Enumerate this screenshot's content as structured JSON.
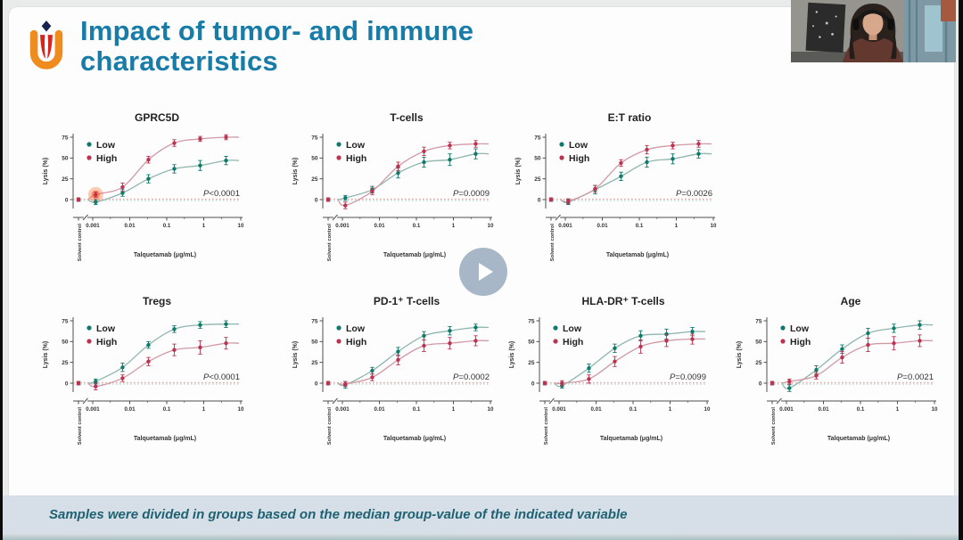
{
  "header": {
    "title_line1": "Impact of tumor- and immune",
    "title_line2": "characteristics",
    "logo": "umc-utrecht-tulip-logo"
  },
  "footer": {
    "caption": "Samples were divided in groups based on the median group-value of the indicated variable"
  },
  "player": {
    "play_icon": "play-triangle"
  },
  "colors": {
    "title": "#187ca8",
    "low": "#0e7a6c",
    "high": "#bc3351",
    "caption_bg": "#d6dfe8",
    "caption_text": "#1f6271",
    "highlight": "#ff5a25"
  },
  "chart_data": [
    {
      "type": "line",
      "title": "GPRC5D",
      "xlabel": "Talquetamab (μg/mL)",
      "ylabel": "Lysis (%)",
      "x_scale": "log",
      "x": [
        0.0012,
        0.0064,
        0.032,
        0.16,
        0.8,
        4
      ],
      "x_tick_labels": [
        "0.001",
        "0.01",
        "0.1",
        "1",
        "10"
      ],
      "y_ticks": [
        0,
        25,
        50,
        75
      ],
      "ylim": [
        -12,
        80
      ],
      "solvent_control_label": "Solvent control",
      "p_label": "P<0.0001",
      "legend_position": "top-left",
      "grid": false,
      "series": [
        {
          "name": "Low",
          "color": "#0e7a6c",
          "curve_color": "#8fb6ae",
          "solvent": 0,
          "values": [
            -3,
            8,
            25,
            37,
            41,
            47
          ],
          "err": [
            3,
            4,
            5,
            5,
            6,
            5
          ]
        },
        {
          "name": "High",
          "color": "#bc3351",
          "curve_color": "#d09aa6",
          "solvent": 0,
          "values": [
            6,
            15,
            48,
            68,
            73,
            75
          ],
          "err": [
            3,
            5,
            4,
            4,
            3,
            3
          ]
        }
      ],
      "highlight": {
        "series": 1,
        "point": 0
      }
    },
    {
      "type": "line",
      "title": "T-cells",
      "xlabel": "Talquetamab (μg/mL)",
      "ylabel": "Lysis (%)",
      "x_scale": "log",
      "x": [
        0.0012,
        0.0064,
        0.032,
        0.16,
        0.8,
        4
      ],
      "x_tick_labels": [
        "0.001",
        "0.01",
        "0.1",
        "1",
        "10"
      ],
      "y_ticks": [
        0,
        25,
        50,
        75
      ],
      "ylim": [
        -12,
        80
      ],
      "solvent_control_label": "Solvent control",
      "p_label": "P=0.0009",
      "legend_position": "top-left",
      "grid": false,
      "series": [
        {
          "name": "Low",
          "color": "#0e7a6c",
          "curve_color": "#8fb6ae",
          "solvent": 0,
          "values": [
            2,
            12,
            32,
            45,
            48,
            55
          ],
          "err": [
            3,
            4,
            6,
            6,
            7,
            6
          ]
        },
        {
          "name": "High",
          "color": "#bc3351",
          "curve_color": "#d09aa6",
          "solvent": 0,
          "values": [
            -7,
            10,
            40,
            58,
            65,
            67
          ],
          "err": [
            4,
            4,
            5,
            5,
            4,
            4
          ]
        }
      ]
    },
    {
      "type": "line",
      "title": "E:T ratio",
      "xlabel": "Talquetamab (μg/mL)",
      "ylabel": "Lysis (%)",
      "x_scale": "log",
      "x": [
        0.0012,
        0.0064,
        0.032,
        0.16,
        0.8,
        4
      ],
      "x_tick_labels": [
        "0.001",
        "0.01",
        "0.1",
        "1",
        "10"
      ],
      "y_ticks": [
        0,
        25,
        50,
        75
      ],
      "ylim": [
        -12,
        80
      ],
      "solvent_control_label": "Solvent control",
      "p_label": "P=0.0026",
      "legend_position": "top-left",
      "grid": false,
      "series": [
        {
          "name": "Low",
          "color": "#0e7a6c",
          "curve_color": "#8fb6ae",
          "solvent": 0,
          "values": [
            -3,
            12,
            28,
            45,
            49,
            55
          ],
          "err": [
            3,
            5,
            5,
            6,
            6,
            5
          ]
        },
        {
          "name": "High",
          "color": "#bc3351",
          "curve_color": "#d09aa6",
          "solvent": 0,
          "values": [
            -2,
            13,
            44,
            60,
            65,
            67
          ],
          "err": [
            3,
            4,
            4,
            5,
            4,
            4
          ]
        }
      ]
    },
    {
      "type": "line",
      "title": "Tregs",
      "xlabel": "Talquetamab (μg/mL)",
      "ylabel": "Lysis (%)",
      "x_scale": "log",
      "x": [
        0.0012,
        0.0064,
        0.032,
        0.16,
        0.8,
        4
      ],
      "x_tick_labels": [
        "0.001",
        "0.01",
        "0.1",
        "1",
        "10"
      ],
      "y_ticks": [
        0,
        25,
        50,
        75
      ],
      "ylim": [
        -12,
        80
      ],
      "solvent_control_label": "Solvent control",
      "p_label": "P<0.0001",
      "legend_position": "top-left",
      "grid": false,
      "series": [
        {
          "name": "Low",
          "color": "#0e7a6c",
          "curve_color": "#8fb6ae",
          "solvent": 0,
          "values": [
            2,
            19,
            46,
            65,
            70,
            71
          ],
          "err": [
            3,
            5,
            4,
            4,
            4,
            4
          ]
        },
        {
          "name": "High",
          "color": "#bc3351",
          "curve_color": "#d09aa6",
          "solvent": 0,
          "values": [
            -4,
            6,
            26,
            40,
            43,
            48
          ],
          "err": [
            4,
            4,
            5,
            7,
            8,
            7
          ]
        }
      ]
    },
    {
      "type": "line",
      "title": "PD-1⁺ T-cells",
      "xlabel": "Talquetamab (μg/mL)",
      "ylabel": "Lysis (%)",
      "x_scale": "log",
      "x": [
        0.0012,
        0.0064,
        0.032,
        0.16,
        0.8,
        4
      ],
      "x_tick_labels": [
        "0.001",
        "0.01",
        "0.1",
        "1",
        "10"
      ],
      "y_ticks": [
        0,
        25,
        50,
        75
      ],
      "ylim": [
        -12,
        80
      ],
      "solvent_control_label": "Solvent control",
      "p_label": "P=0.0002",
      "legend_position": "top-left",
      "grid": false,
      "series": [
        {
          "name": "Low",
          "color": "#0e7a6c",
          "curve_color": "#8fb6ae",
          "solvent": 0,
          "values": [
            -2,
            15,
            38,
            57,
            63,
            67
          ],
          "err": [
            4,
            4,
            5,
            5,
            5,
            4
          ]
        },
        {
          "name": "High",
          "color": "#bc3351",
          "curve_color": "#d09aa6",
          "solvent": 0,
          "values": [
            -1,
            7,
            28,
            45,
            48,
            51
          ],
          "err": [
            3,
            4,
            6,
            7,
            7,
            6
          ]
        }
      ]
    },
    {
      "type": "line",
      "title": "HLA-DR⁺ T-cells",
      "xlabel": "Talquetamab (μg/mL)",
      "ylabel": "Lysis (%)",
      "x_scale": "log",
      "x": [
        0.0012,
        0.0064,
        0.032,
        0.16,
        0.8,
        4
      ],
      "x_tick_labels": [
        "0.001",
        "0.01",
        "0.1",
        "1",
        "10"
      ],
      "y_ticks": [
        0,
        25,
        50,
        75
      ],
      "ylim": [
        -12,
        80
      ],
      "solvent_control_label": "Solvent control",
      "p_label": "P=0.0099",
      "legend_position": "top-left",
      "grid": false,
      "series": [
        {
          "name": "Low",
          "color": "#0e7a6c",
          "curve_color": "#8fb6ae",
          "solvent": 0,
          "values": [
            -3,
            18,
            42,
            57,
            59,
            62
          ],
          "err": [
            3,
            5,
            5,
            6,
            6,
            5
          ]
        },
        {
          "name": "High",
          "color": "#bc3351",
          "curve_color": "#d09aa6",
          "solvent": 0,
          "values": [
            0,
            5,
            26,
            44,
            51,
            53
          ],
          "err": [
            3,
            5,
            6,
            8,
            7,
            6
          ]
        }
      ]
    },
    {
      "type": "line",
      "title": "Age",
      "xlabel": "Talquetamab (μg/mL)",
      "ylabel": "Lysis (%)",
      "x_scale": "log",
      "x": [
        0.0012,
        0.0064,
        0.032,
        0.16,
        0.8,
        4
      ],
      "x_tick_labels": [
        "0.001",
        "0.01",
        "0.1",
        "1",
        "10"
      ],
      "y_ticks": [
        0,
        25,
        50,
        75
      ],
      "ylim": [
        -12,
        80
      ],
      "solvent_control_label": "Solvent control",
      "p_label": "P=0.0021",
      "legend_position": "top-left",
      "grid": false,
      "series": [
        {
          "name": "Low",
          "color": "#0e7a6c",
          "curve_color": "#8fb6ae",
          "solvent": 0,
          "values": [
            -6,
            16,
            41,
            60,
            66,
            70
          ],
          "err": [
            4,
            5,
            5,
            6,
            5,
            5
          ]
        },
        {
          "name": "High",
          "color": "#bc3351",
          "curve_color": "#d09aa6",
          "solvent": 0,
          "values": [
            2,
            9,
            31,
            46,
            48,
            51
          ],
          "err": [
            3,
            4,
            7,
            8,
            8,
            7
          ]
        }
      ]
    }
  ]
}
